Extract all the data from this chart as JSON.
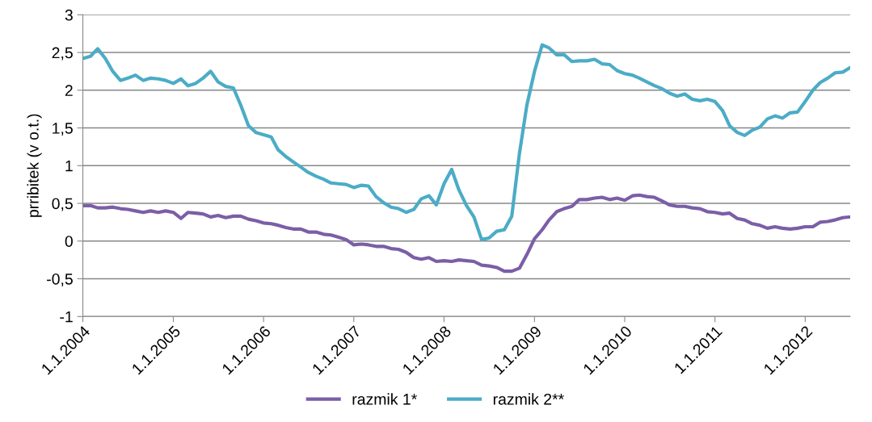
{
  "chart_data": {
    "type": "line",
    "ylabel": "prribitek (v o.t.)",
    "x": [
      "2004-01",
      "2004-02",
      "2004-03",
      "2004-04",
      "2004-05",
      "2004-06",
      "2004-07",
      "2004-08",
      "2004-09",
      "2004-10",
      "2004-11",
      "2004-12",
      "2005-01",
      "2005-02",
      "2005-03",
      "2005-04",
      "2005-05",
      "2005-06",
      "2005-07",
      "2005-08",
      "2005-09",
      "2005-10",
      "2005-11",
      "2005-12",
      "2006-01",
      "2006-02",
      "2006-03",
      "2006-04",
      "2006-05",
      "2006-06",
      "2006-07",
      "2006-08",
      "2006-09",
      "2006-10",
      "2006-11",
      "2006-12",
      "2007-01",
      "2007-02",
      "2007-03",
      "2007-04",
      "2007-05",
      "2007-06",
      "2007-07",
      "2007-08",
      "2007-09",
      "2007-10",
      "2007-11",
      "2007-12",
      "2008-01",
      "2008-02",
      "2008-03",
      "2008-04",
      "2008-05",
      "2008-06",
      "2008-07",
      "2008-08",
      "2008-09",
      "2008-10",
      "2008-11",
      "2008-12",
      "2009-01",
      "2009-02",
      "2009-03",
      "2009-04",
      "2009-05",
      "2009-06",
      "2009-07",
      "2009-08",
      "2009-09",
      "2009-10",
      "2009-11",
      "2009-12",
      "2010-01",
      "2010-02",
      "2010-03",
      "2010-04",
      "2010-05",
      "2010-06",
      "2010-07",
      "2010-08",
      "2010-09",
      "2010-10",
      "2010-11",
      "2010-12",
      "2011-01",
      "2011-02",
      "2011-03",
      "2011-04",
      "2011-05",
      "2011-06",
      "2011-07",
      "2011-08",
      "2011-09",
      "2011-10",
      "2011-11",
      "2011-12",
      "2012-01",
      "2012-02",
      "2012-03",
      "2012-04",
      "2012-05",
      "2012-06",
      "2012-07"
    ],
    "series": [
      {
        "name": "razmik 1*",
        "color": "#7b5ea7",
        "values": [
          0.47,
          0.47,
          0.44,
          0.44,
          0.45,
          0.43,
          0.42,
          0.4,
          0.38,
          0.4,
          0.38,
          0.4,
          0.38,
          0.3,
          0.38,
          0.37,
          0.36,
          0.32,
          0.34,
          0.31,
          0.33,
          0.33,
          0.29,
          0.27,
          0.24,
          0.23,
          0.21,
          0.18,
          0.16,
          0.16,
          0.12,
          0.12,
          0.09,
          0.08,
          0.05,
          0.02,
          -0.05,
          -0.04,
          -0.05,
          -0.07,
          -0.07,
          -0.1,
          -0.11,
          -0.15,
          -0.22,
          -0.24,
          -0.22,
          -0.27,
          -0.26,
          -0.27,
          -0.25,
          -0.26,
          -0.27,
          -0.32,
          -0.33,
          -0.35,
          -0.4,
          -0.4,
          -0.36,
          -0.18,
          0.03,
          0.15,
          0.28,
          0.39,
          0.43,
          0.46,
          0.55,
          0.55,
          0.57,
          0.58,
          0.55,
          0.57,
          0.54,
          0.6,
          0.61,
          0.59,
          0.58,
          0.53,
          0.48,
          0.46,
          0.46,
          0.44,
          0.43,
          0.39,
          0.38,
          0.36,
          0.37,
          0.3,
          0.28,
          0.23,
          0.21,
          0.17,
          0.19,
          0.17,
          0.16,
          0.17,
          0.19,
          0.19,
          0.25,
          0.26,
          0.28,
          0.31,
          0.32
        ]
      },
      {
        "name": "razmik 2**",
        "color": "#4bacc6",
        "values": [
          2.42,
          2.45,
          2.55,
          2.42,
          2.25,
          2.13,
          2.16,
          2.2,
          2.13,
          2.16,
          2.15,
          2.13,
          2.09,
          2.15,
          2.06,
          2.09,
          2.16,
          2.25,
          2.11,
          2.05,
          2.03,
          1.8,
          1.53,
          1.44,
          1.41,
          1.38,
          1.21,
          1.12,
          1.05,
          0.98,
          0.91,
          0.86,
          0.82,
          0.77,
          0.76,
          0.75,
          0.71,
          0.74,
          0.73,
          0.59,
          0.51,
          0.45,
          0.43,
          0.38,
          0.42,
          0.56,
          0.6,
          0.48,
          0.76,
          0.95,
          0.68,
          0.47,
          0.32,
          0.02,
          0.04,
          0.13,
          0.15,
          0.33,
          1.16,
          1.8,
          2.25,
          2.6,
          2.56,
          2.47,
          2.47,
          2.38,
          2.39,
          2.39,
          2.41,
          2.35,
          2.34,
          2.26,
          2.22,
          2.2,
          2.16,
          2.11,
          2.06,
          2.02,
          1.96,
          1.92,
          1.95,
          1.88,
          1.86,
          1.88,
          1.85,
          1.73,
          1.53,
          1.44,
          1.4,
          1.47,
          1.51,
          1.62,
          1.66,
          1.63,
          1.7,
          1.71,
          1.85,
          2.0,
          2.1,
          2.16,
          2.23,
          2.24,
          2.3
        ]
      }
    ],
    "xlim": [
      "2004-01-01",
      "2012-07-01"
    ],
    "xticks": [
      {
        "value": "2004-01-01",
        "label": "1.1.2004"
      },
      {
        "value": "2005-01-01",
        "label": "1.1.2005"
      },
      {
        "value": "2006-01-01",
        "label": "1.1.2006"
      },
      {
        "value": "2007-01-01",
        "label": "1.1.2007"
      },
      {
        "value": "2008-01-01",
        "label": "1.1.2008"
      },
      {
        "value": "2009-01-01",
        "label": "1.1.2009"
      },
      {
        "value": "2010-01-01",
        "label": "1.1.2010"
      },
      {
        "value": "2011-01-01",
        "label": "1.1.2011"
      },
      {
        "value": "2012-01-01",
        "label": "1.1.2012"
      }
    ],
    "ylim": [
      -1,
      3
    ],
    "yticks": [
      -1,
      {
        "value": -0.5,
        "label": "-0,5"
      },
      0,
      {
        "value": 0.5,
        "label": "0,5"
      },
      1,
      {
        "value": 1.5,
        "label": "1,5"
      },
      2,
      {
        "value": 2.5,
        "label": "2,5"
      },
      3
    ],
    "grid": "y",
    "legend": "bottom",
    "marker": "none",
    "line_style": "solid"
  }
}
